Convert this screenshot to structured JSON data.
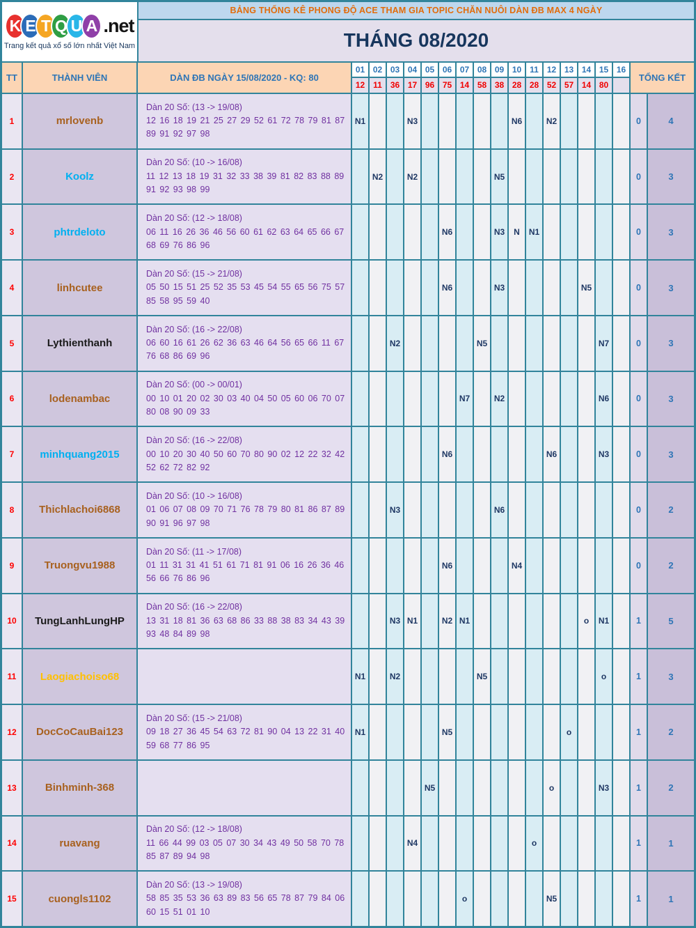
{
  "logo": {
    "letters": [
      {
        "ch": "K",
        "color": "#e8312e"
      },
      {
        "ch": "E",
        "color": "#2b6cb8"
      },
      {
        "ch": "T",
        "color": "#f5a623"
      },
      {
        "ch": "Q",
        "color": "#2f9e44"
      },
      {
        "ch": "U",
        "color": "#29b6e8"
      },
      {
        "ch": "A",
        "color": "#8f3fa8"
      }
    ],
    "suffix": ".net",
    "tagline": "Trang kết quả xổ số lớn nhất Việt Nam"
  },
  "banner": {
    "title": "BẢNG THỐNG KÊ PHONG ĐỘ ACE THAM GIA TOPIC CHĂN NUÔI DÀN ĐB MAX 4 NGÀY",
    "month": "THÁNG 08/2020"
  },
  "table": {
    "headers": {
      "tt": "TT",
      "member": "THÀNH VIÊN",
      "dan": "DÀN ĐB NGÀY 15/08/2020 - KQ: 80",
      "total": "TỔNG KẾT"
    },
    "day_columns": [
      "01",
      "02",
      "03",
      "04",
      "05",
      "06",
      "07",
      "08",
      "09",
      "10",
      "11",
      "12",
      "13",
      "14",
      "15",
      "16"
    ],
    "day_results": [
      "12",
      "11",
      "36",
      "17",
      "96",
      "75",
      "14",
      "58",
      "38",
      "28",
      "28",
      "52",
      "57",
      "14",
      "80",
      ""
    ],
    "rows": [
      {
        "tt": "1",
        "name": "mrlovenb",
        "name_color": "#a8611f",
        "dan_line1": "Dàn 20 Số: (13 -> 19/08)",
        "dan_line2": "12 16 18 19 21 25 27 29 52 61 72 78 79 81 87 89 91 92 97 98",
        "cells": {
          "01": "N1",
          "04": "N3",
          "10": "N6",
          "12": "N2"
        },
        "total1": "0",
        "total2": "4"
      },
      {
        "tt": "2",
        "name": "Koolz",
        "name_color": "#00b0f0",
        "dan_line1": "Dàn 20 Số: (10 -> 16/08)",
        "dan_line2": "11 12 13 18 19 31 32 33 38 39 81 82 83 88 89 91 92 93 98 99",
        "cells": {
          "02": "N2",
          "04": "N2",
          "09": "N5"
        },
        "total1": "0",
        "total2": "3"
      },
      {
        "tt": "3",
        "name": "phtrdeloto",
        "name_color": "#00b0f0",
        "dan_line1": "Dàn 20 Số: (12 -> 18/08)",
        "dan_line2": "06 11 16 26 36 46 56 60 61 62 63 64 65 66 67 68 69 76 86 96",
        "cells": {
          "06": "N6",
          "09": "N3",
          "10": "N",
          "11": "N1"
        },
        "total1": "0",
        "total2": "3"
      },
      {
        "tt": "4",
        "name": "linhcutee",
        "name_color": "#a8611f",
        "dan_line1": "Dàn 20 Số: (15 -> 21/08)",
        "dan_line2": "05 50 15 51 25 52 35 53 45 54 55 65 56 75 57 85 58 95 59 40",
        "cells": {
          "06": "N6",
          "09": "N3",
          "14": "N5"
        },
        "total1": "0",
        "total2": "3"
      },
      {
        "tt": "5",
        "name": "Lythienthanh",
        "name_color": "#1a1a1a",
        "dan_line1": "Dàn 20 Số: (16 -> 22/08)",
        "dan_line2": "06 60 16 61 26 62 36 63 46 64 56 65 66 11 67 76 68 86 69 96",
        "cells": {
          "03": "N2",
          "08": "N5",
          "15": "N7"
        },
        "total1": "0",
        "total2": "3"
      },
      {
        "tt": "6",
        "name": "lodenambac",
        "name_color": "#a8611f",
        "dan_line1": "Dàn 20 Số: (00 -> 00/01)",
        "dan_line2": "00 10 01 20 02 30 03 40 04 50 05 60 06 70 07 80 08 90 09 33",
        "cells": {
          "07": "N7",
          "09": "N2",
          "15": "N6"
        },
        "total1": "0",
        "total2": "3"
      },
      {
        "tt": "7",
        "name": "minhquang2015",
        "name_color": "#00b0f0",
        "dan_line1": "Dàn 20 Số: (16 -> 22/08)",
        "dan_line2": "00 10 20 30 40 50 60 70 80 90 02 12 22 32 42 52 62 72 82 92",
        "cells": {
          "06": "N6",
          "12": "N6",
          "15": "N3"
        },
        "total1": "0",
        "total2": "3"
      },
      {
        "tt": "8",
        "name": "Thichlachoi6868",
        "name_color": "#a8611f",
        "dan_line1": "Dàn 20 Số: (10 -> 16/08)",
        "dan_line2": "01 06 07 08 09 70 71 76 78 79 80 81 86 87 89 90 91 96 97 98",
        "cells": {
          "03": "N3",
          "09": "N6"
        },
        "total1": "0",
        "total2": "2"
      },
      {
        "tt": "9",
        "name": "Truongvu1988",
        "name_color": "#a8611f",
        "dan_line1": "Dàn 20 Số: (11 -> 17/08)",
        "dan_line2": "01 11 31 31 41 51 61 71 81 91 06 16 26 36 46 56 66 76 86 96",
        "cells": {
          "06": "N6",
          "10": "N4"
        },
        "total1": "0",
        "total2": "2"
      },
      {
        "tt": "10",
        "name": "TungLanhLungHP",
        "name_color": "#1a1a1a",
        "dan_line1": "Dàn 20 Số: (16 -> 22/08)",
        "dan_line2": "13 31 18 81 36 63 68 86 33 88 38 83 34 43 39 93 48 84 89 98",
        "cells": {
          "03": "N3",
          "04": "N1",
          "06": "N2",
          "07": "N1",
          "14": "o",
          "15": "N1"
        },
        "total1": "1",
        "total2": "5"
      },
      {
        "tt": "11",
        "name": "Laogiachoiso68",
        "name_color": "#ffc000",
        "dan_line1": "",
        "dan_line2": "",
        "cells": {
          "01": "N1",
          "03": "N2",
          "08": "N5",
          "15": "o"
        },
        "total1": "1",
        "total2": "3"
      },
      {
        "tt": "12",
        "name": "DocCoCauBai123",
        "name_color": "#a8611f",
        "dan_line1": "Dàn 20 Số: (15 -> 21/08)",
        "dan_line2": "09 18 27 36 45 54 63 72 81 90 04 13 22 31 40 59 68 77 86 95",
        "cells": {
          "01": "N1",
          "06": "N5",
          "13": "o"
        },
        "total1": "1",
        "total2": "2"
      },
      {
        "tt": "13",
        "name": "Binhminh-368",
        "name_color": "#a8611f",
        "dan_line1": "",
        "dan_line2": "",
        "cells": {
          "05": "N5",
          "12": "o",
          "15": "N3"
        },
        "total1": "1",
        "total2": "2"
      },
      {
        "tt": "14",
        "name": "ruavang",
        "name_color": "#a8611f",
        "dan_line1": "Dàn 20 Số: (12 -> 18/08)",
        "dan_line2": "11 66 44 99 03 05 07 30 34 43 49 50 58 70 78 85 87 89 94 98",
        "cells": {
          "04": "N4",
          "11": "o"
        },
        "total1": "1",
        "total2": "1"
      },
      {
        "tt": "15",
        "name": "cuongls1102",
        "name_color": "#a8611f",
        "dan_line1": "Dàn 20 Số: (13 -> 19/08)",
        "dan_line2": "58 85 35 53 36 63 89 83 56 65 78 87 79 84 06 60 15 51 01 10",
        "cells": {
          "07": "o",
          "12": "N5"
        },
        "total1": "1",
        "total2": "1"
      }
    ]
  }
}
